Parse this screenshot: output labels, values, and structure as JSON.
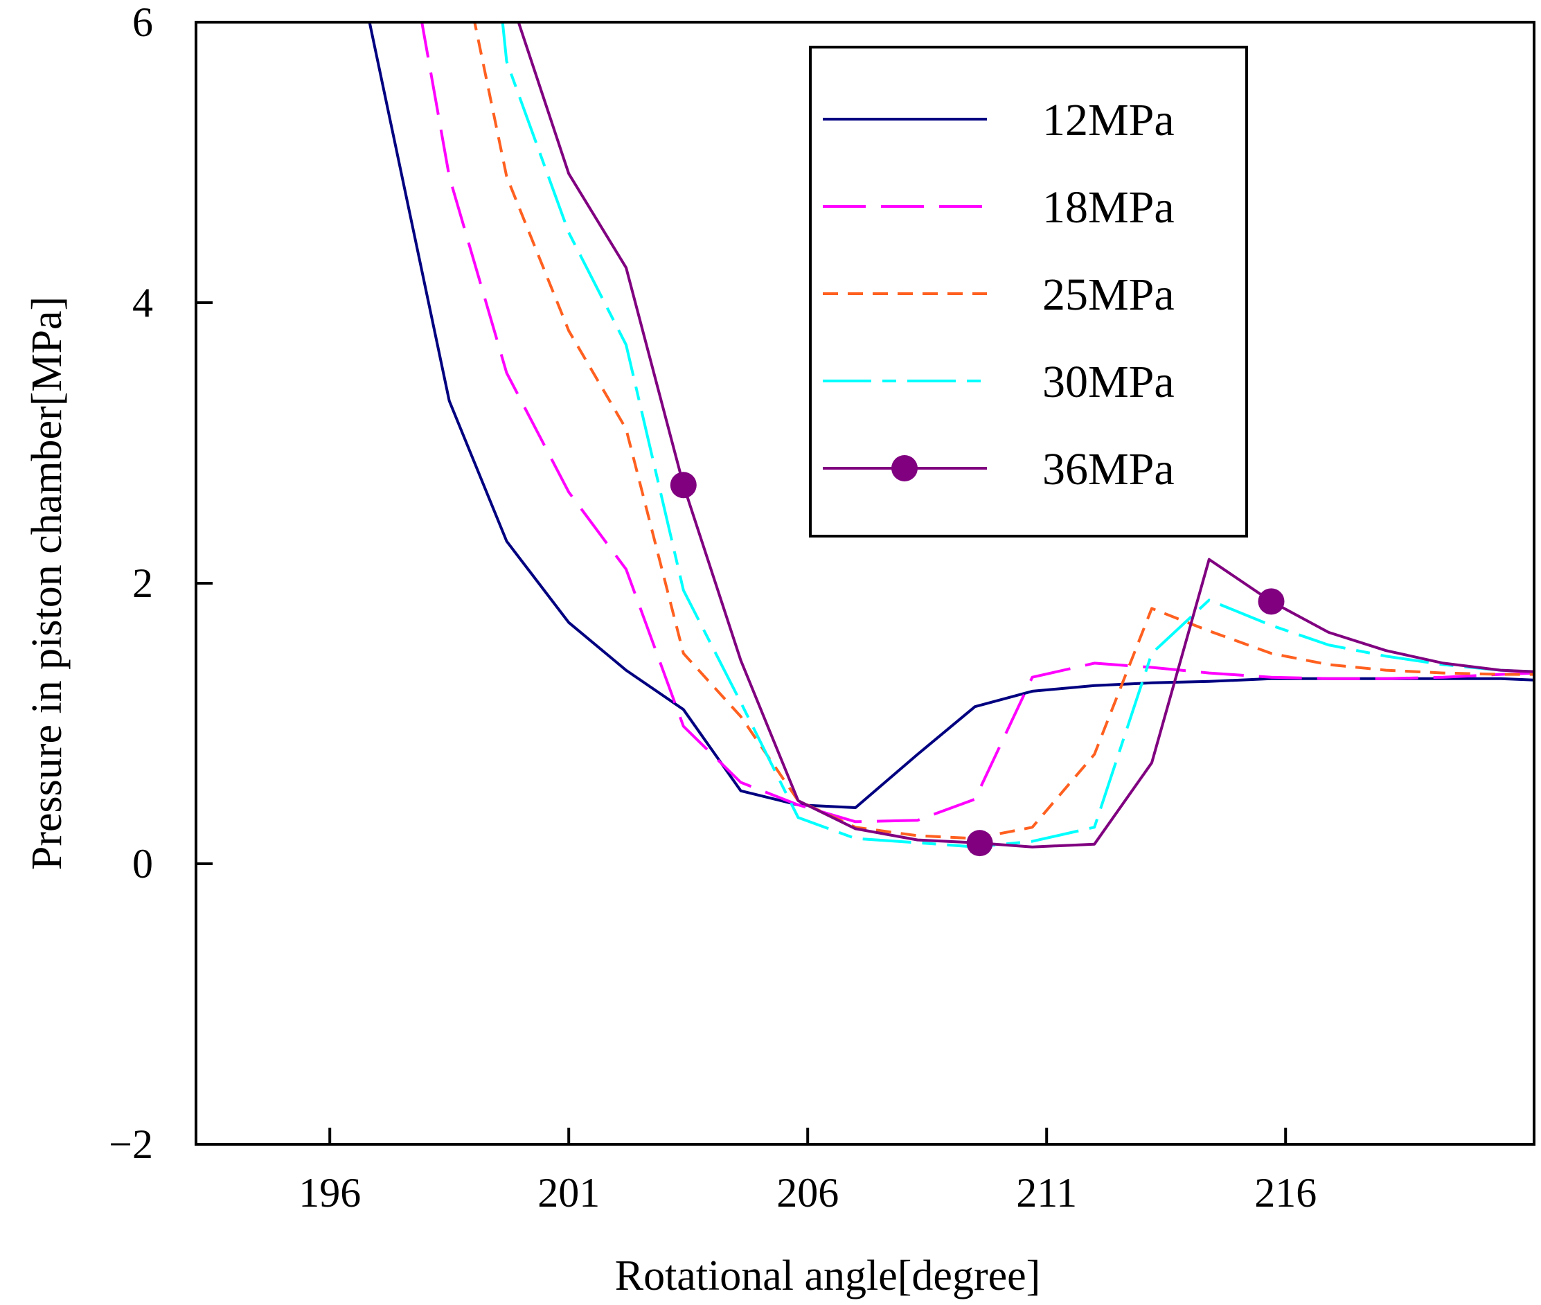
{
  "chart_data": {
    "type": "line",
    "xlabel": "Rotational angle[degree]",
    "ylabel": "Pressure in piston chamber[MPa]",
    "xlim": [
      193.2,
      221.2
    ],
    "ylim": [
      -2,
      6
    ],
    "xticks": [
      196,
      201,
      206,
      211,
      216
    ],
    "yticks": [
      -2,
      0,
      2,
      4,
      6
    ],
    "ytick_labels": [
      "−2",
      "0",
      "2",
      "4",
      "6"
    ],
    "legend_position": "top-right",
    "series": [
      {
        "name": "12MPa",
        "color": "#000080",
        "dash": "solid",
        "marker": "none",
        "points": [
          [
            196.8,
            6.05
          ],
          [
            198.5,
            3.3
          ],
          [
            199.7,
            2.3
          ],
          [
            201.0,
            1.72
          ],
          [
            202.2,
            1.38
          ],
          [
            203.4,
            1.1
          ],
          [
            204.6,
            0.52
          ],
          [
            205.8,
            0.42
          ],
          [
            207.0,
            0.4
          ],
          [
            208.3,
            0.78
          ],
          [
            209.5,
            1.12
          ],
          [
            210.7,
            1.23
          ],
          [
            212.0,
            1.27
          ],
          [
            213.2,
            1.29
          ],
          [
            214.4,
            1.3
          ],
          [
            215.7,
            1.32
          ],
          [
            216.9,
            1.32
          ],
          [
            218.1,
            1.32
          ],
          [
            219.3,
            1.32
          ],
          [
            220.5,
            1.32
          ],
          [
            221.2,
            1.31
          ]
        ]
      },
      {
        "name": "18MPa",
        "color": "#ff00ff",
        "dash": "long-dash",
        "marker": "none",
        "points": [
          [
            197.9,
            6.05
          ],
          [
            198.5,
            4.9
          ],
          [
            199.7,
            3.5
          ],
          [
            201.0,
            2.65
          ],
          [
            202.2,
            2.1
          ],
          [
            203.4,
            0.98
          ],
          [
            204.6,
            0.58
          ],
          [
            205.8,
            0.42
          ],
          [
            207.0,
            0.3
          ],
          [
            208.3,
            0.31
          ],
          [
            209.5,
            0.46
          ],
          [
            210.7,
            1.33
          ],
          [
            212.0,
            1.43
          ],
          [
            213.2,
            1.4
          ],
          [
            214.4,
            1.36
          ],
          [
            215.7,
            1.33
          ],
          [
            216.9,
            1.32
          ],
          [
            218.1,
            1.32
          ],
          [
            219.3,
            1.33
          ],
          [
            220.5,
            1.35
          ],
          [
            221.2,
            1.36
          ]
        ]
      },
      {
        "name": "25MPa",
        "color": "#ff6020",
        "dash": "short-dash",
        "marker": "none",
        "points": [
          [
            199.0,
            6.05
          ],
          [
            199.7,
            4.9
          ],
          [
            201.0,
            3.8
          ],
          [
            202.2,
            3.1
          ],
          [
            203.4,
            1.5
          ],
          [
            204.6,
            1.05
          ],
          [
            205.8,
            0.45
          ],
          [
            207.0,
            0.26
          ],
          [
            208.3,
            0.2
          ],
          [
            209.5,
            0.18
          ],
          [
            210.7,
            0.26
          ],
          [
            212.0,
            0.78
          ],
          [
            213.2,
            1.82
          ],
          [
            214.4,
            1.66
          ],
          [
            215.7,
            1.5
          ],
          [
            216.9,
            1.42
          ],
          [
            218.1,
            1.38
          ],
          [
            219.3,
            1.36
          ],
          [
            220.5,
            1.35
          ],
          [
            221.2,
            1.35
          ]
        ]
      },
      {
        "name": "30MPa",
        "color": "#00ffff",
        "dash": "dash-dot",
        "marker": "none",
        "points": [
          [
            199.6,
            6.05
          ],
          [
            199.7,
            5.72
          ],
          [
            201.0,
            4.5
          ],
          [
            202.2,
            3.7
          ],
          [
            203.4,
            1.95
          ],
          [
            204.6,
            1.15
          ],
          [
            205.8,
            0.33
          ],
          [
            207.0,
            0.18
          ],
          [
            208.3,
            0.15
          ],
          [
            209.5,
            0.12
          ],
          [
            210.7,
            0.16
          ],
          [
            212.0,
            0.26
          ],
          [
            213.2,
            1.5
          ],
          [
            214.4,
            1.88
          ],
          [
            215.7,
            1.7
          ],
          [
            216.9,
            1.56
          ],
          [
            218.1,
            1.48
          ],
          [
            219.3,
            1.42
          ],
          [
            220.5,
            1.38
          ],
          [
            221.2,
            1.37
          ]
        ]
      },
      {
        "name": "36MPa",
        "color": "#800080",
        "dash": "solid",
        "marker": "circle",
        "marker_x": [
          203.4,
          209.6,
          215.7
        ],
        "points": [
          [
            199.9,
            6.05
          ],
          [
            201.0,
            4.92
          ],
          [
            202.2,
            4.25
          ],
          [
            203.4,
            2.7
          ],
          [
            204.6,
            1.45
          ],
          [
            205.8,
            0.45
          ],
          [
            207.0,
            0.25
          ],
          [
            208.3,
            0.17
          ],
          [
            209.5,
            0.15
          ],
          [
            210.7,
            0.12
          ],
          [
            212.0,
            0.14
          ],
          [
            213.2,
            0.72
          ],
          [
            214.4,
            2.17
          ],
          [
            215.7,
            1.87
          ],
          [
            216.9,
            1.65
          ],
          [
            218.1,
            1.52
          ],
          [
            219.3,
            1.43
          ],
          [
            220.5,
            1.38
          ],
          [
            221.2,
            1.37
          ]
        ]
      }
    ]
  }
}
